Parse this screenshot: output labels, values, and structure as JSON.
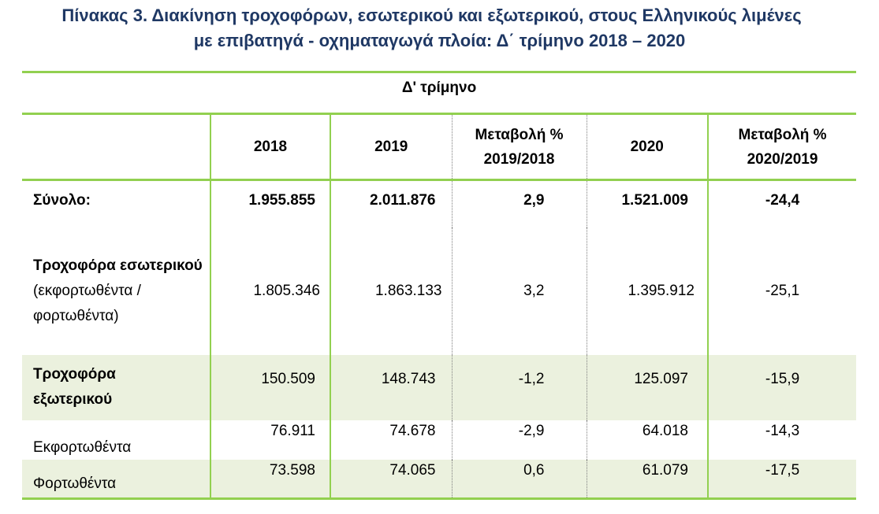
{
  "title": {
    "line1": "Πίνακας 3. Διακίνηση τροχοφόρων, εσωτερικού και εξωτερικού, στους Ελληνικούς λιμένες",
    "line2": "με επιβατηγά - οχηματαγωγά πλοία: Δ΄ τρίμηνο 2018 – 2020"
  },
  "table": {
    "period_header": "Δ' τρίμηνο",
    "columns": [
      "2018",
      "2019",
      "Μεταβολή % 2019/2018",
      "2020",
      "Μεταβολή % 2020/2019"
    ],
    "rows": [
      {
        "label": "Σύνολο:",
        "label_sub": "",
        "values": [
          "1.955.855",
          "2.011.876",
          "2,9",
          "1.521.009",
          "-24,4"
        ]
      },
      {
        "label": "Τροχοφόρα εσωτερικού",
        "label_sub": "(εκφορτωθέντα / φορτωθέντα)",
        "values": [
          "1.805.346",
          "1.863.133",
          "3,2",
          "1.395.912",
          "-25,1"
        ]
      },
      {
        "label": "Τροχοφόρα εξωτερικού",
        "label_sub": "",
        "values": [
          "150.509",
          "148.743",
          "-1,2",
          "125.097",
          "-15,9"
        ]
      },
      {
        "label": "Εκφορτωθέντα",
        "label_sub": "",
        "values": [
          "76.911",
          "74.678",
          "-2,9",
          "64.018",
          "-14,3"
        ]
      },
      {
        "label": "Φορτωθέντα",
        "label_sub": "",
        "values": [
          "73.598",
          "74.065",
          "0,6",
          "61.079",
          "-17,5"
        ]
      }
    ]
  },
  "colors": {
    "title": "#1f3864",
    "rule": "#92d050",
    "shade": "#ebf1de"
  }
}
